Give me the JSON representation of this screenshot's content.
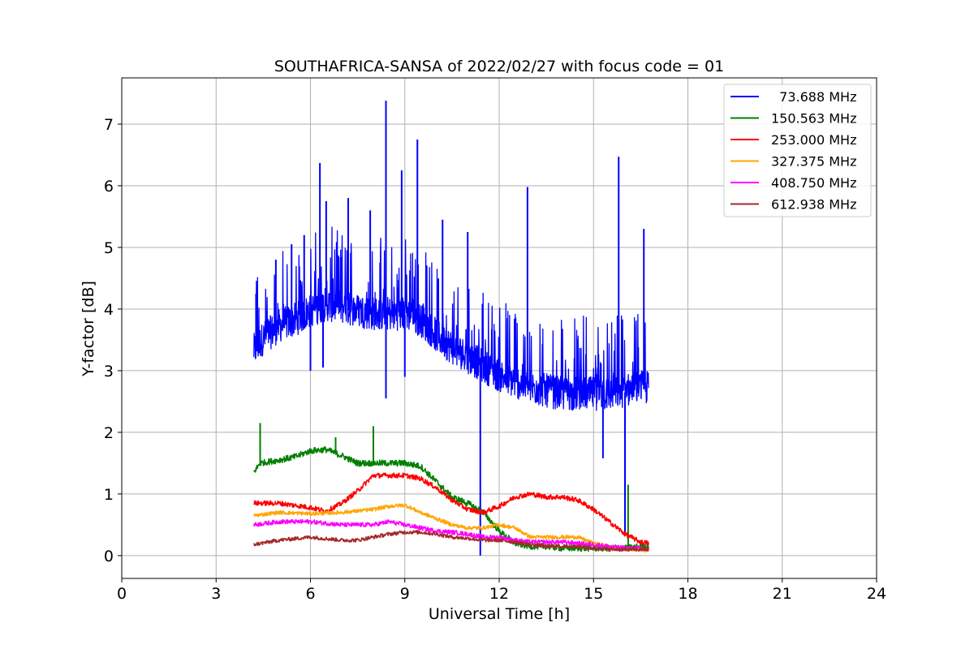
{
  "chart_data": {
    "type": "line",
    "title": "SOUTHAFRICA-SANSA of 2022/02/27 with focus code = 01",
    "xlabel": "Universal Time [h]",
    "ylabel": "Y-factor [dB]",
    "xlim": [
      0,
      24
    ],
    "ylim": [
      -0.37,
      7.75
    ],
    "xticks": [
      0,
      3,
      6,
      9,
      12,
      15,
      18,
      21,
      24
    ],
    "yticks": [
      0,
      1,
      2,
      3,
      4,
      5,
      6,
      7
    ],
    "grid": true,
    "legend_position": "top-right",
    "series": [
      {
        "name": "  73.688 MHz",
        "color": "#0000ff",
        "x": [
          4.2,
          4.5,
          5.0,
          5.5,
          6.0,
          6.5,
          7.0,
          7.5,
          8.0,
          8.5,
          9.0,
          9.5,
          10.0,
          10.5,
          11.0,
          11.5,
          12.0,
          12.5,
          13.0,
          13.5,
          14.0,
          14.5,
          15.0,
          15.5,
          16.0,
          16.5,
          16.75
        ],
        "y": [
          3.3,
          3.5,
          3.7,
          3.8,
          3.95,
          4.05,
          4.0,
          3.95,
          3.9,
          3.9,
          3.9,
          3.8,
          3.55,
          3.35,
          3.2,
          3.05,
          2.9,
          2.8,
          2.7,
          2.65,
          2.6,
          2.6,
          2.6,
          2.6,
          2.65,
          2.7,
          2.7
        ],
        "peaks": [
          [
            4.27,
            4.25
          ],
          [
            4.9,
            4.8
          ],
          [
            5.4,
            5.05
          ],
          [
            5.8,
            5.2
          ],
          [
            6.3,
            6.37
          ],
          [
            6.5,
            5.75
          ],
          [
            7.2,
            5.8
          ],
          [
            7.9,
            5.6
          ],
          [
            8.4,
            7.38
          ],
          [
            8.9,
            6.25
          ],
          [
            9.4,
            6.75
          ],
          [
            10.2,
            5.45
          ],
          [
            11.0,
            5.25
          ],
          [
            12.9,
            5.98
          ],
          [
            15.8,
            6.47
          ],
          [
            16.6,
            5.3
          ]
        ],
        "dips": [
          [
            6.0,
            3.0
          ],
          [
            6.4,
            3.05
          ],
          [
            8.4,
            2.55
          ],
          [
            9.0,
            2.9
          ],
          [
            11.4,
            0.0
          ],
          [
            15.3,
            1.58
          ],
          [
            16.0,
            0.35
          ]
        ]
      },
      {
        "name": "150.563 MHz",
        "color": "#008000",
        "x": [
          4.2,
          4.4,
          5.0,
          5.5,
          6.0,
          6.5,
          7.0,
          7.5,
          8.0,
          8.5,
          9.0,
          9.5,
          10.0,
          10.5,
          11.0,
          11.5,
          12.0,
          12.5,
          13.0,
          13.5,
          14.0,
          14.5,
          15.0,
          15.5,
          16.0,
          16.5,
          16.75
        ],
        "y": [
          1.35,
          1.5,
          1.55,
          1.6,
          1.7,
          1.72,
          1.62,
          1.5,
          1.5,
          1.5,
          1.5,
          1.45,
          1.2,
          0.95,
          0.85,
          0.7,
          0.4,
          0.2,
          0.15,
          0.15,
          0.12,
          0.12,
          0.12,
          0.12,
          0.12,
          0.15,
          0.15
        ],
        "peaks": [
          [
            4.4,
            2.15
          ],
          [
            6.8,
            1.92
          ],
          [
            8.0,
            2.1
          ],
          [
            16.1,
            1.15
          ]
        ],
        "dips": []
      },
      {
        "name": "253.000 MHz",
        "color": "#ff0000",
        "x": [
          4.2,
          5.0,
          6.0,
          6.5,
          7.0,
          7.5,
          8.0,
          8.5,
          9.0,
          9.5,
          10.0,
          10.5,
          11.0,
          11.5,
          12.0,
          12.5,
          13.0,
          13.5,
          14.0,
          14.5,
          15.0,
          15.5,
          16.0,
          16.5,
          16.75
        ],
        "y": [
          0.85,
          0.85,
          0.78,
          0.72,
          0.85,
          1.05,
          1.3,
          1.3,
          1.3,
          1.25,
          1.1,
          0.9,
          0.75,
          0.7,
          0.8,
          0.95,
          1.0,
          0.95,
          0.95,
          0.9,
          0.75,
          0.55,
          0.35,
          0.22,
          0.2
        ],
        "peaks": [],
        "dips": []
      },
      {
        "name": "327.375 MHz",
        "color": "#ffa500",
        "x": [
          4.2,
          5.0,
          6.0,
          7.0,
          8.0,
          8.5,
          9.0,
          9.5,
          10.0,
          10.5,
          11.0,
          11.5,
          12.0,
          12.5,
          13.0,
          13.5,
          14.0,
          14.5,
          15.0,
          15.5,
          16.0,
          16.5,
          16.75
        ],
        "y": [
          0.65,
          0.7,
          0.68,
          0.7,
          0.75,
          0.8,
          0.82,
          0.7,
          0.6,
          0.5,
          0.45,
          0.45,
          0.5,
          0.45,
          0.3,
          0.3,
          0.3,
          0.3,
          0.2,
          0.15,
          0.1,
          0.1,
          0.08
        ],
        "peaks": [],
        "dips": []
      },
      {
        "name": "408.750 MHz",
        "color": "#ff00ff",
        "x": [
          4.2,
          5.0,
          6.0,
          7.0,
          8.0,
          8.5,
          9.0,
          9.5,
          10.0,
          10.5,
          11.0,
          11.5,
          12.0,
          12.5,
          13.0,
          13.5,
          14.0,
          14.5,
          15.0,
          15.5,
          16.0,
          16.5,
          16.75
        ],
        "y": [
          0.5,
          0.55,
          0.55,
          0.5,
          0.5,
          0.55,
          0.5,
          0.45,
          0.4,
          0.38,
          0.35,
          0.3,
          0.3,
          0.25,
          0.22,
          0.22,
          0.22,
          0.2,
          0.18,
          0.15,
          0.12,
          0.12,
          0.1
        ],
        "peaks": [],
        "dips": []
      },
      {
        "name": "612.938 MHz",
        "color": "#a52a2a",
        "x": [
          4.2,
          5.0,
          6.0,
          7.0,
          7.5,
          8.0,
          8.5,
          9.0,
          9.5,
          10.0,
          10.5,
          11.0,
          11.5,
          12.0,
          12.5,
          13.0,
          13.5,
          14.0,
          14.5,
          15.0,
          15.5,
          16.0,
          16.5,
          16.75
        ],
        "y": [
          0.18,
          0.25,
          0.3,
          0.25,
          0.25,
          0.3,
          0.35,
          0.38,
          0.38,
          0.35,
          0.3,
          0.28,
          0.25,
          0.25,
          0.22,
          0.18,
          0.15,
          0.15,
          0.15,
          0.12,
          0.1,
          0.1,
          0.1,
          0.1
        ],
        "peaks": [],
        "dips": []
      }
    ]
  }
}
